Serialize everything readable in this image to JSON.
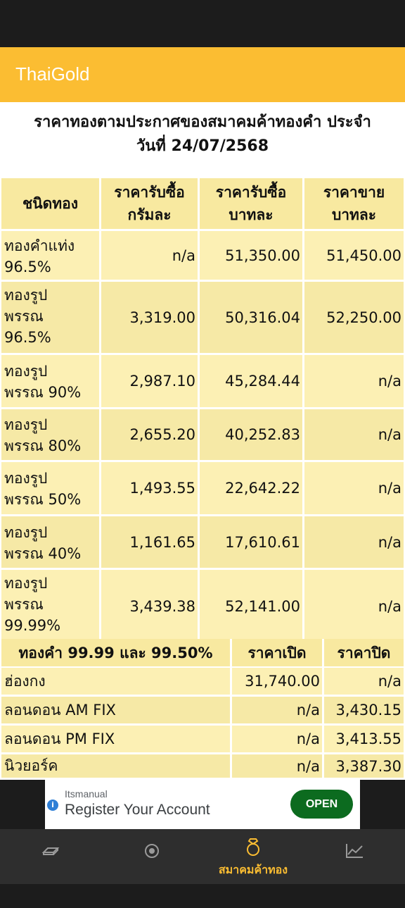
{
  "app": {
    "title": "ThaiGold"
  },
  "heading": {
    "line1": "ราคาทองตามประกาศของสมาคมค้าทองคำ ประจำ",
    "line2": "วันที่ 24/07/2568"
  },
  "price_table": {
    "headers": [
      "ชนิดทอง",
      "ราคารับซื้อ\nกรัมละ",
      "ราคารับซื้อ\nบาทละ",
      "ราคาขาย\nบาทละ"
    ],
    "rows": [
      {
        "name": "ทองคำแท่ง\n96.5%",
        "buy_gram": "n/a",
        "buy_baht": "51,350.00",
        "sell_baht": "51,450.00"
      },
      {
        "name": "ทองรูป\nพรรณ\n96.5%",
        "buy_gram": "3,319.00",
        "buy_baht": "50,316.04",
        "sell_baht": "52,250.00"
      },
      {
        "name": "ทองรูป\nพรรณ 90%",
        "buy_gram": "2,987.10",
        "buy_baht": "45,284.44",
        "sell_baht": "n/a"
      },
      {
        "name": "ทองรูป\nพรรณ 80%",
        "buy_gram": "2,655.20",
        "buy_baht": "40,252.83",
        "sell_baht": "n/a"
      },
      {
        "name": "ทองรูป\nพรรณ 50%",
        "buy_gram": "1,493.55",
        "buy_baht": "22,642.22",
        "sell_baht": "n/a"
      },
      {
        "name": "ทองรูป\nพรรณ 40%",
        "buy_gram": "1,161.65",
        "buy_baht": "17,610.61",
        "sell_baht": "n/a"
      },
      {
        "name": "ทองรูป\nพรรณ\n99.99%",
        "buy_gram": "3,439.38",
        "buy_baht": "52,141.00",
        "sell_baht": "n/a"
      }
    ]
  },
  "market_table": {
    "headers": [
      "ทองคำ 99.99 และ 99.50%",
      "ราคาเปิด",
      "ราคาปิด"
    ],
    "rows": [
      {
        "name": "ฮ่องกง",
        "open": "31,740.00",
        "close": "n/a"
      },
      {
        "name": "ลอนดอน AM FIX",
        "open": "n/a",
        "close": "3,430.15"
      },
      {
        "name": "ลอนดอน PM FIX",
        "open": "n/a",
        "close": "3,413.55"
      },
      {
        "name": "นิวยอร์ค",
        "open": "n/a",
        "close": "3,387.30"
      }
    ]
  },
  "ad": {
    "source": "Itsmanual",
    "title": "Register Your Account",
    "button": "OPEN"
  },
  "bottom_nav": {
    "items": [
      {
        "icon": "gold-bar-icon",
        "label": ""
      },
      {
        "icon": "target-icon",
        "label": ""
      },
      {
        "icon": "ring-icon",
        "label": "สมาคมค้าทอง"
      },
      {
        "icon": "chart-trend-icon",
        "label": ""
      }
    ],
    "active_color": "#fbbd32"
  },
  "colors": {
    "brand": "#fbbd32",
    "cell": "#fcf0b4",
    "cell_alt": "#f6e9a6"
  }
}
